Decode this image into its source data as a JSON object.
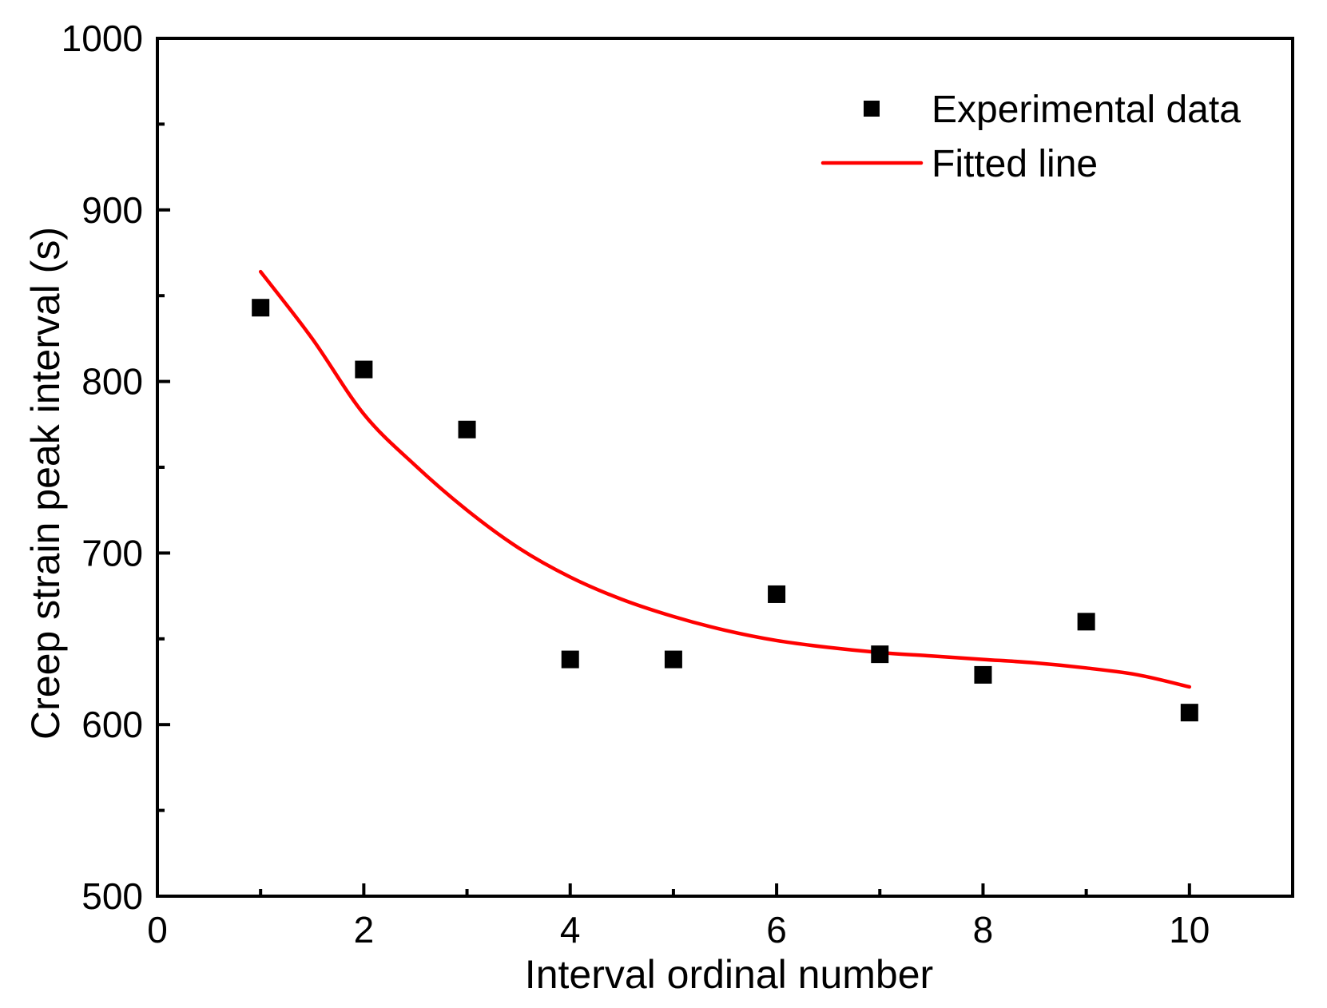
{
  "chart_data": {
    "type": "scatter",
    "title": "",
    "xlabel": "Interval ordinal number",
    "ylabel": "Creep strain peak interval (s)",
    "xlim": [
      0,
      11
    ],
    "ylim": [
      500,
      1000
    ],
    "xticks": [
      0,
      2,
      4,
      6,
      8,
      10
    ],
    "xminor": [
      1,
      3,
      5,
      7,
      9,
      11
    ],
    "yticks": [
      500,
      600,
      700,
      800,
      900,
      1000
    ],
    "yminor": [
      550,
      650,
      750,
      850,
      950
    ],
    "grid": false,
    "legend_position": "top-right",
    "series": [
      {
        "name": "Experimental data",
        "kind": "scatter",
        "marker": "square",
        "color": "#000000",
        "x": [
          1,
          2,
          3,
          4,
          5,
          6,
          7,
          8,
          9,
          10
        ],
        "y": [
          843,
          807,
          772,
          638,
          638,
          676,
          641,
          629,
          660,
          607
        ]
      },
      {
        "name": "Fitted line",
        "kind": "line",
        "color": "#ff0000",
        "x": [
          1,
          1.5,
          2,
          2.5,
          3,
          3.5,
          4,
          4.5,
          5,
          5.5,
          6,
          6.5,
          7,
          7.5,
          8,
          8.5,
          9,
          9.5,
          10
        ],
        "y": [
          864,
          825,
          781,
          751,
          725,
          703,
          686,
          673,
          663,
          655,
          649,
          645,
          642,
          640,
          638,
          636,
          633,
          629,
          622
        ]
      }
    ]
  }
}
